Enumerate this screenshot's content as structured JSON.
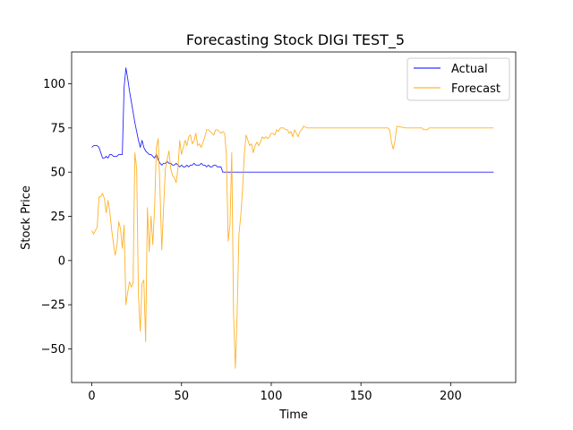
{
  "chart_data": {
    "type": "line",
    "title": "Forecasting Stock DIGI TEST_5",
    "xlabel": "Time",
    "ylabel": "Stock Price",
    "xlim": [
      -11.25,
      236.25
    ],
    "ylim": [
      -69,
      118
    ],
    "xticks": [
      0,
      50,
      100,
      150,
      200
    ],
    "yticks": [
      -50,
      -25,
      0,
      25,
      50,
      75,
      100
    ],
    "grid": false,
    "legend_position": "top-right",
    "series": [
      {
        "name": "Actual",
        "color": "#0000ff",
        "points": [
          [
            0,
            64
          ],
          [
            1,
            65
          ],
          [
            2,
            65
          ],
          [
            3,
            65
          ],
          [
            4,
            64
          ],
          [
            5,
            61
          ],
          [
            6,
            58
          ],
          [
            7,
            58
          ],
          [
            8,
            59
          ],
          [
            9,
            58
          ],
          [
            10,
            60
          ],
          [
            11,
            60
          ],
          [
            12,
            59
          ],
          [
            13,
            59
          ],
          [
            14,
            59
          ],
          [
            15,
            60
          ],
          [
            16,
            60
          ],
          [
            17,
            60
          ],
          [
            18,
            98
          ],
          [
            19,
            109
          ],
          [
            20,
            103
          ],
          [
            21,
            96
          ],
          [
            22,
            90
          ],
          [
            23,
            84
          ],
          [
            24,
            78
          ],
          [
            25,
            73
          ],
          [
            26,
            68
          ],
          [
            27,
            64
          ],
          [
            28,
            68
          ],
          [
            29,
            64
          ],
          [
            30,
            62
          ],
          [
            31,
            61
          ],
          [
            32,
            60
          ],
          [
            33,
            60
          ],
          [
            34,
            59
          ],
          [
            35,
            58
          ],
          [
            36,
            60
          ],
          [
            37,
            57
          ],
          [
            38,
            55
          ],
          [
            39,
            54
          ],
          [
            40,
            55
          ],
          [
            41,
            55
          ],
          [
            42,
            56
          ],
          [
            43,
            55
          ],
          [
            44,
            55
          ],
          [
            45,
            54
          ],
          [
            46,
            54
          ],
          [
            47,
            55
          ],
          [
            48,
            54
          ],
          [
            49,
            53
          ],
          [
            50,
            54
          ],
          [
            51,
            53
          ],
          [
            52,
            53
          ],
          [
            53,
            54
          ],
          [
            54,
            53
          ],
          [
            55,
            54
          ],
          [
            56,
            54
          ],
          [
            57,
            55
          ],
          [
            58,
            54
          ],
          [
            59,
            54
          ],
          [
            60,
            54
          ],
          [
            61,
            55
          ],
          [
            62,
            54
          ],
          [
            63,
            54
          ],
          [
            64,
            53
          ],
          [
            65,
            54
          ],
          [
            66,
            53
          ],
          [
            67,
            53
          ],
          [
            68,
            54
          ],
          [
            69,
            54
          ],
          [
            70,
            53
          ],
          [
            71,
            53
          ],
          [
            72,
            53
          ],
          [
            73,
            50
          ],
          [
            74,
            50
          ],
          [
            80,
            50
          ],
          [
            100,
            50
          ],
          [
            120,
            50
          ],
          [
            140,
            50
          ],
          [
            160,
            50
          ],
          [
            180,
            50
          ],
          [
            200,
            50
          ],
          [
            224,
            50
          ]
        ]
      },
      {
        "name": "Forecast",
        "color": "#ffa500",
        "points": [
          [
            0,
            17
          ],
          [
            1,
            15
          ],
          [
            2,
            17
          ],
          [
            3,
            19
          ],
          [
            4,
            36
          ],
          [
            5,
            36
          ],
          [
            6,
            38
          ],
          [
            7,
            35
          ],
          [
            8,
            27
          ],
          [
            9,
            34
          ],
          [
            10,
            28
          ],
          [
            11,
            18
          ],
          [
            12,
            10
          ],
          [
            13,
            3
          ],
          [
            14,
            8
          ],
          [
            15,
            22
          ],
          [
            16,
            18
          ],
          [
            17,
            7
          ],
          [
            18,
            20
          ],
          [
            19,
            -25
          ],
          [
            20,
            -18
          ],
          [
            21,
            -12
          ],
          [
            22,
            -15
          ],
          [
            23,
            -13
          ],
          [
            24,
            61
          ],
          [
            25,
            52
          ],
          [
            26,
            -20
          ],
          [
            27,
            -40
          ],
          [
            28,
            -13
          ],
          [
            29,
            -11
          ],
          [
            30,
            -46
          ],
          [
            31,
            30
          ],
          [
            32,
            5
          ],
          [
            33,
            25
          ],
          [
            34,
            9
          ],
          [
            35,
            30
          ],
          [
            36,
            64
          ],
          [
            37,
            69
          ],
          [
            38,
            40
          ],
          [
            39,
            6
          ],
          [
            40,
            30
          ],
          [
            41,
            52
          ],
          [
            42,
            57
          ],
          [
            43,
            62
          ],
          [
            44,
            52
          ],
          [
            45,
            48
          ],
          [
            46,
            47
          ],
          [
            47,
            44
          ],
          [
            48,
            52
          ],
          [
            49,
            68
          ],
          [
            50,
            60
          ],
          [
            51,
            64
          ],
          [
            52,
            68
          ],
          [
            53,
            65
          ],
          [
            54,
            70
          ],
          [
            55,
            71
          ],
          [
            56,
            66
          ],
          [
            57,
            68
          ],
          [
            58,
            72
          ],
          [
            59,
            65
          ],
          [
            60,
            66
          ],
          [
            61,
            64
          ],
          [
            62,
            67
          ],
          [
            63,
            70
          ],
          [
            64,
            74
          ],
          [
            65,
            74
          ],
          [
            66,
            73
          ],
          [
            67,
            72
          ],
          [
            68,
            71
          ],
          [
            69,
            74
          ],
          [
            70,
            74
          ],
          [
            71,
            73
          ],
          [
            72,
            72
          ],
          [
            73,
            73
          ],
          [
            74,
            72
          ],
          [
            75,
            60
          ],
          [
            76,
            11
          ],
          [
            77,
            20
          ],
          [
            78,
            61
          ],
          [
            79,
            -30
          ],
          [
            80,
            -61
          ],
          [
            81,
            -30
          ],
          [
            82,
            15
          ],
          [
            83,
            25
          ],
          [
            84,
            40
          ],
          [
            85,
            60
          ],
          [
            86,
            71
          ],
          [
            87,
            68
          ],
          [
            88,
            65
          ],
          [
            89,
            66
          ],
          [
            90,
            61
          ],
          [
            91,
            65
          ],
          [
            92,
            67
          ],
          [
            93,
            65
          ],
          [
            94,
            67
          ],
          [
            95,
            70
          ],
          [
            96,
            69
          ],
          [
            97,
            70
          ],
          [
            98,
            69
          ],
          [
            99,
            70
          ],
          [
            100,
            72
          ],
          [
            101,
            72
          ],
          [
            102,
            71
          ],
          [
            103,
            74
          ],
          [
            104,
            73
          ],
          [
            105,
            75
          ],
          [
            106,
            75
          ],
          [
            107,
            75
          ],
          [
            108,
            74
          ],
          [
            109,
            74
          ],
          [
            110,
            72
          ],
          [
            111,
            73
          ],
          [
            112,
            70
          ],
          [
            113,
            74
          ],
          [
            114,
            72
          ],
          [
            115,
            70
          ],
          [
            116,
            73
          ],
          [
            117,
            74
          ],
          [
            118,
            76
          ],
          [
            120,
            75
          ],
          [
            125,
            75
          ],
          [
            130,
            75
          ],
          [
            135,
            75
          ],
          [
            140,
            75
          ],
          [
            145,
            75
          ],
          [
            150,
            75
          ],
          [
            155,
            75
          ],
          [
            160,
            75
          ],
          [
            164,
            75
          ],
          [
            165,
            75
          ],
          [
            166,
            74
          ],
          [
            167,
            67
          ],
          [
            168,
            63
          ],
          [
            169,
            68
          ],
          [
            170,
            76
          ],
          [
            175,
            75
          ],
          [
            180,
            75
          ],
          [
            183,
            75
          ],
          [
            184,
            75
          ],
          [
            185,
            74
          ],
          [
            186,
            74
          ],
          [
            187,
            74
          ],
          [
            188,
            75
          ],
          [
            189,
            75
          ],
          [
            190,
            75
          ],
          [
            195,
            75
          ],
          [
            200,
            75
          ],
          [
            205,
            75
          ],
          [
            210,
            75
          ],
          [
            215,
            75
          ],
          [
            220,
            75
          ],
          [
            224,
            75
          ]
        ]
      }
    ]
  }
}
